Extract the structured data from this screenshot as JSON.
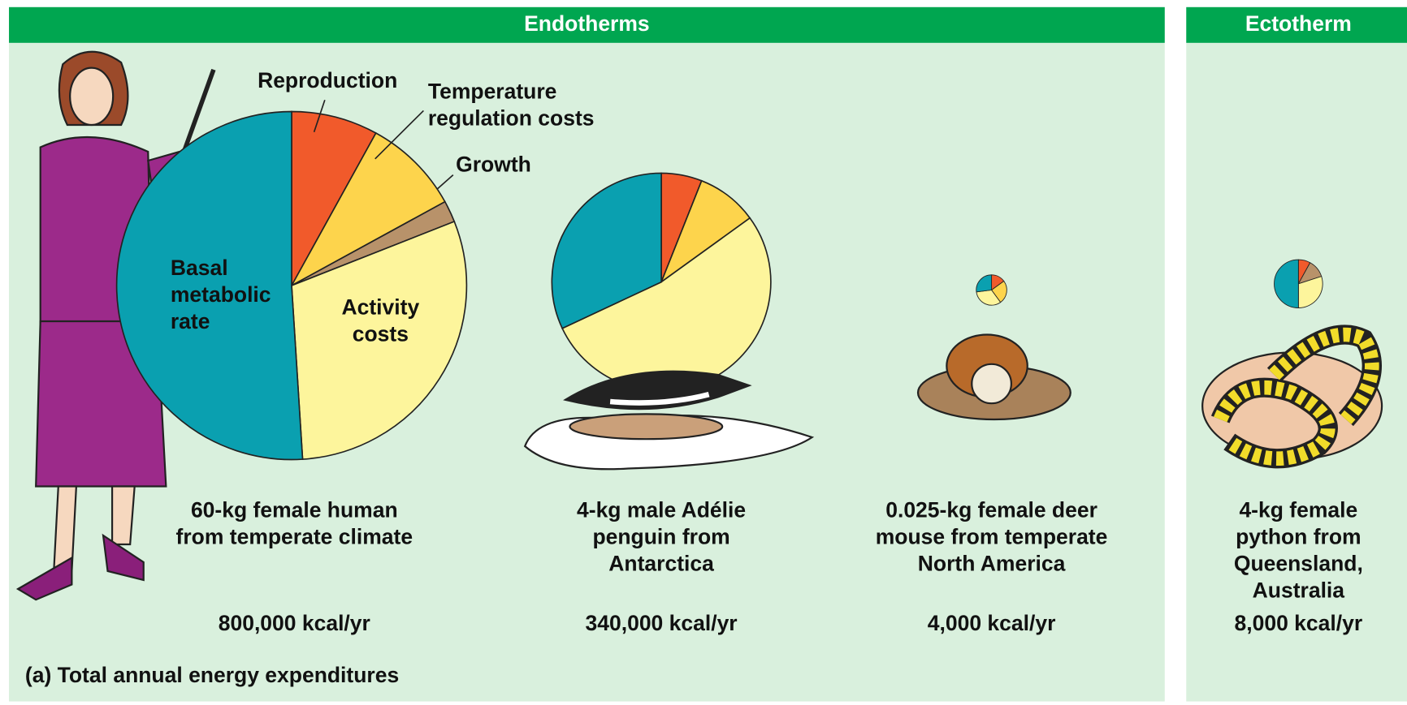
{
  "header": {
    "endotherms": "Endotherms",
    "ectotherm": "Ectotherm"
  },
  "categories": [
    {
      "lines": [
        "Reproduction"
      ],
      "color": "#f15a2b"
    },
    {
      "lines": [
        "Temperature",
        "regulation costs"
      ],
      "color": "#fdd44c"
    },
    {
      "lines": [
        "Growth"
      ],
      "color": "#b8926a"
    },
    {
      "lines": [
        "Activity",
        "costs"
      ],
      "color": "#fdf59c"
    },
    {
      "lines": [
        "Basal",
        "metabolic",
        "rate"
      ],
      "color": "#0aa0b0"
    }
  ],
  "panels": [
    {
      "lines": [
        "60-kg female human",
        "from temperate climate"
      ],
      "energy": "800,000 kcal/yr",
      "values": [
        8,
        9,
        2,
        30,
        51
      ]
    },
    {
      "lines": [
        "4-kg male Adélie",
        "penguin from",
        "Antarctica"
      ],
      "energy": "340,000 kcal/yr",
      "values": [
        6,
        9,
        null,
        53,
        32
      ]
    },
    {
      "lines": [
        "0.025-kg female deer",
        "mouse from temperate",
        "North America"
      ],
      "energy": "4,000 kcal/yr",
      "values": [
        15,
        25,
        null,
        33,
        27
      ]
    },
    {
      "lines": [
        "4-kg female",
        "python from",
        "Queensland,",
        "Australia"
      ],
      "energy": "8,000 kcal/yr",
      "values": [
        8,
        null,
        12,
        30,
        50
      ]
    }
  ],
  "caption": "(a) Total annual energy expenditures"
}
